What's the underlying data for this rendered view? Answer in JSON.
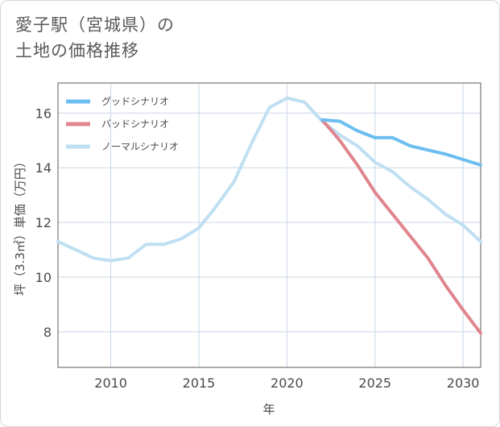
{
  "title_line1": "愛子駅（宮城県）の",
  "title_line2": "土地の価格推移",
  "chart_data": {
    "type": "line",
    "xlabel": "年",
    "ylabel": "坪（3.3㎡）単価（万円）",
    "xlim": [
      2007,
      2031
    ],
    "ylim": [
      6.7,
      17.1
    ],
    "x_ticks": [
      2010,
      2015,
      2020,
      2025,
      2030
    ],
    "y_ticks": [
      8,
      10,
      12,
      14,
      16
    ],
    "grid": true,
    "legend_position": "top-left",
    "series": [
      {
        "name": "グッドシナリオ",
        "color": "#6cbef0",
        "x": [
          2022,
          2023,
          2024,
          2025,
          2026,
          2027,
          2028,
          2029,
          2030,
          2031
        ],
        "y": [
          15.75,
          15.7,
          15.35,
          15.1,
          15.1,
          14.8,
          14.65,
          14.5,
          14.3,
          14.1
        ]
      },
      {
        "name": "バッドシナリオ",
        "color": "#e0858e",
        "x": [
          2022,
          2023,
          2024,
          2025,
          2026,
          2027,
          2028,
          2029,
          2030,
          2031
        ],
        "y": [
          15.75,
          15.0,
          14.1,
          13.1,
          12.3,
          11.5,
          10.7,
          9.7,
          8.8,
          7.95
        ]
      },
      {
        "name": "ノーマルシナリオ",
        "color": "#bfdff2",
        "x": [
          2007,
          2008,
          2009,
          2010,
          2011,
          2012,
          2013,
          2014,
          2015,
          2016,
          2017,
          2018,
          2019,
          2020,
          2021,
          2022,
          2023,
          2024,
          2025,
          2026,
          2027,
          2028,
          2029,
          2030,
          2031
        ],
        "y": [
          11.3,
          11.0,
          10.7,
          10.6,
          10.7,
          11.2,
          11.2,
          11.4,
          11.8,
          12.6,
          13.5,
          14.9,
          16.2,
          16.55,
          16.4,
          15.7,
          15.2,
          14.8,
          14.2,
          13.85,
          13.3,
          12.85,
          12.3,
          11.9,
          11.3
        ]
      }
    ]
  }
}
